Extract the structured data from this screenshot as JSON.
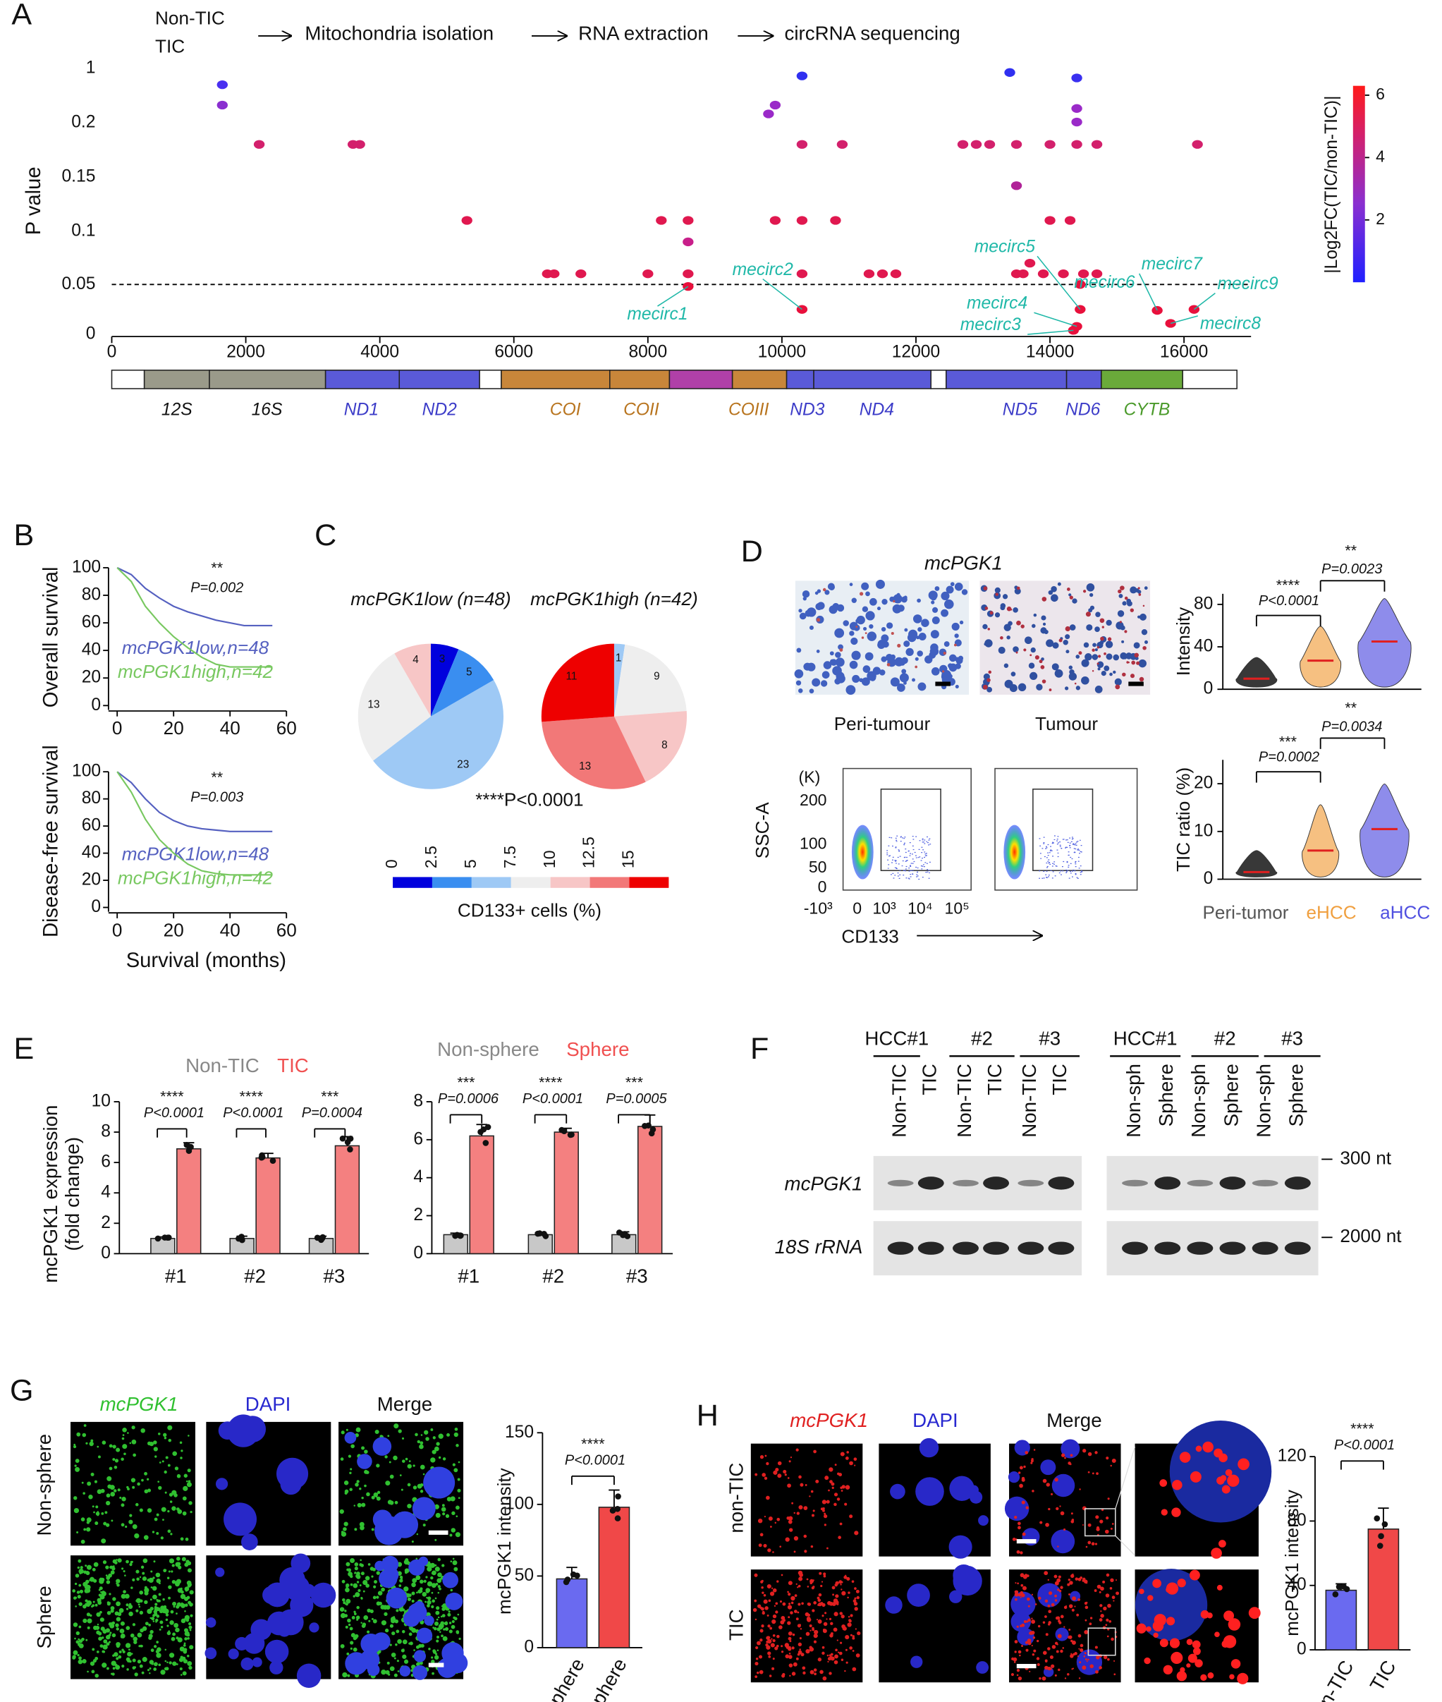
{
  "panels": [
    "A",
    "B",
    "C",
    "D",
    "E",
    "F",
    "G",
    "H"
  ],
  "A": {
    "flow": [
      "Non-TIC",
      "TIC",
      "Mitochondria isolation",
      "RNA extraction",
      "circRNA sequencing"
    ],
    "genes": [
      "12S",
      "16S",
      "ND1",
      "ND2",
      "COI",
      "COII",
      "COIII",
      "ND3",
      "ND4",
      "ND5",
      "ND6",
      "CYTB"
    ],
    "colorbar_title": "|Log2FC(TIC/non-TIC)|",
    "colorbar_lim": [
      0,
      6.3
    ],
    "colorbar_ticks": [
      2,
      4,
      6
    ]
  },
  "C": {
    "ticks": [
      0,
      2.5,
      5,
      7.5,
      10,
      12.5,
      15
    ],
    "colors": [
      "#0000dd",
      "#3a8ef0",
      "#9ec9f5",
      "#eeeeee",
      "#f7c6c6",
      "#f27878",
      "#ee0000"
    ],
    "label": "CD133+ cells (%)",
    "p": "****P<0.0001"
  },
  "D": {
    "title": "mcPGK1",
    "images": [
      "Peri-tumour",
      "Tumour"
    ],
    "flow_unit": "(K)",
    "flow_ylabel": "SSC-A",
    "flow_yticks": [
      "200",
      "100",
      "50",
      "0"
    ],
    "flow_xticks": [
      "-10³",
      "0",
      "10³",
      "10⁴",
      "10⁵"
    ],
    "flow_xlabel": "CD133"
  },
  "F": {
    "groups_left": [
      "HCC#1",
      "#2",
      "#3"
    ],
    "groups_right": [
      "HCC#1",
      "#2",
      "#3"
    ],
    "lanes_left": [
      "Non-TIC",
      "TIC",
      "Non-TIC",
      "TIC",
      "Non-TIC",
      "TIC"
    ],
    "lanes_right": [
      "Non-sph",
      "Sphere",
      "Non-sph",
      "Sphere",
      "Non-sph",
      "Sphere"
    ],
    "rows": [
      "mcPGK1",
      "18S rRNA"
    ],
    "markers": [
      "300 nt",
      "2000 nt"
    ]
  },
  "G": {
    "columns": [
      "mcPGK1",
      "DAPI",
      "Merge"
    ],
    "rows": [
      "Non-sphere",
      "Sphere"
    ]
  },
  "H": {
    "columns": [
      "mcPGK1",
      "DAPI",
      "Merge"
    ],
    "rows": [
      "non-TIC",
      "TIC"
    ]
  },
  "chart_data": [
    {
      "type": "scatter",
      "ylabel": "P value",
      "xlim": [
        0,
        17000
      ],
      "xticks": [
        0,
        2000,
        4000,
        6000,
        8000,
        10000,
        12000,
        14000,
        16000
      ],
      "ylim": [
        0,
        1
      ],
      "yticks": [
        0,
        0.05,
        0.1,
        0.15,
        0.2,
        1
      ],
      "hline": 0.05,
      "x": [
        1650,
        1650,
        2200,
        3600,
        3700,
        5300,
        6500,
        6600,
        7000,
        8000,
        8200,
        8600,
        8600,
        8600,
        8600,
        9800,
        9900,
        10300,
        9900,
        10300,
        10800,
        10300,
        10900,
        10300,
        10300,
        11300,
        11500,
        11700,
        12700,
        12900,
        13100,
        13500,
        13500,
        13400,
        13500,
        13600,
        13700,
        14400,
        14400,
        14400,
        14000,
        14400,
        14700,
        14000,
        14300,
        13900,
        14200,
        14500,
        14700,
        14450,
        14450,
        14400,
        14350,
        15600,
        15800,
        16150,
        16200
      ],
      "values": [
        0.76,
        0.46,
        0.18,
        0.18,
        0.18,
        0.11,
        0.06,
        0.06,
        0.06,
        0.06,
        0.11,
        0.11,
        0.09,
        0.06,
        0.048,
        0.33,
        0.46,
        0.89,
        0.11,
        0.11,
        0.11,
        0.18,
        0.18,
        0.06,
        0.025,
        0.06,
        0.06,
        0.06,
        0.18,
        0.18,
        0.18,
        0.18,
        0.142,
        0.94,
        0.06,
        0.06,
        0.07,
        0.86,
        0.41,
        0.21,
        0.18,
        0.18,
        0.18,
        0.11,
        0.11,
        0.06,
        0.06,
        0.06,
        0.06,
        0.05,
        0.025,
        0.008,
        0.004,
        0.024,
        0.011,
        0.025,
        0.18
      ],
      "colors": [
        "#4a2ff0",
        "#8a2fd0",
        "#d3206c",
        "#d3206c",
        "#d3206c",
        "#e0184f",
        "#e0184f",
        "#e0184f",
        "#e0184f",
        "#e0184f",
        "#e0184f",
        "#e0184f",
        "#c81f8a",
        "#e0184f",
        "#e8103c",
        "#9a2ac8",
        "#9a2ac8",
        "#3030f0",
        "#e0184f",
        "#e0184f",
        "#e0184f",
        "#d3206c",
        "#d3206c",
        "#e0184f",
        "#e8103c",
        "#e0184f",
        "#e0184f",
        "#e0184f",
        "#d3206c",
        "#d3206c",
        "#d3206c",
        "#d3206c",
        "#b02398",
        "#3030f0",
        "#e0184f",
        "#e0184f",
        "#e0184f",
        "#3a30f0",
        "#9a2ac8",
        "#9a2ac8",
        "#d3206c",
        "#d3206c",
        "#d3206c",
        "#e0184f",
        "#e0184f",
        "#e0184f",
        "#e0184f",
        "#e0184f",
        "#e0184f",
        "#e8103c",
        "#e8103c",
        "#e8103c",
        "#e8103c",
        "#e8103c",
        "#e8103c",
        "#e8103c",
        "#d3206c"
      ],
      "annotations": [
        "mecirc1",
        "mecirc2",
        "mecirc3",
        "mecirc4",
        "mecirc5",
        "mecirc6",
        "mecirc7",
        "mecirc8",
        "mecirc9"
      ]
    },
    {
      "type": "line",
      "ylabel": "Overall survival",
      "xlim": [
        0,
        60
      ],
      "xticks": [
        0,
        20,
        40,
        60
      ],
      "ylim": [
        0,
        100
      ],
      "yticks": [
        0,
        20,
        40,
        60,
        80,
        100
      ],
      "x": [
        0,
        5,
        10,
        15,
        20,
        25,
        30,
        35,
        40,
        45,
        55
      ],
      "series": [
        {
          "name": "mcPGK1low,n=48",
          "color": "#5560c0",
          "values": [
            100,
            95,
            85,
            78,
            72,
            68,
            65,
            62,
            60,
            58,
            58
          ]
        },
        {
          "name": "mcPGK1high,n=42",
          "color": "#78c860",
          "values": [
            100,
            90,
            72,
            60,
            50,
            42,
            35,
            30,
            28,
            28,
            28
          ]
        }
      ],
      "annotations": [
        "**",
        "P=0.002"
      ]
    },
    {
      "type": "line",
      "ylabel": "Disease-free survival",
      "xlabel": "Survival (months)",
      "xlim": [
        0,
        60
      ],
      "xticks": [
        0,
        20,
        40,
        60
      ],
      "ylim": [
        0,
        100
      ],
      "yticks": [
        0,
        20,
        40,
        60,
        80,
        100
      ],
      "x": [
        0,
        5,
        10,
        15,
        20,
        25,
        30,
        35,
        40,
        45,
        55
      ],
      "series": [
        {
          "name": "mcPGK1low,n=48",
          "color": "#5560c0",
          "values": [
            100,
            92,
            80,
            70,
            64,
            60,
            58,
            57,
            56,
            56,
            56
          ]
        },
        {
          "name": "mcPGK1high,n=42",
          "color": "#78c860",
          "values": [
            100,
            85,
            65,
            50,
            40,
            32,
            27,
            25,
            24,
            24,
            24
          ]
        }
      ],
      "annotations": [
        "**",
        "P=0.003"
      ]
    },
    {
      "type": "pie",
      "title": "mcPGK1low (n=48)",
      "values": [
        3,
        5,
        23,
        13,
        4
      ],
      "colors": [
        "#0000dd",
        "#3a8ef0",
        "#9ec9f5",
        "#eeeeee",
        "#f7c6c6"
      ]
    },
    {
      "type": "pie",
      "title": "mcPGK1high (n=42)",
      "values": [
        1,
        9,
        8,
        13,
        11
      ],
      "colors": [
        "#9ec9f5",
        "#eeeeee",
        "#f7c6c6",
        "#f27878",
        "#ee0000"
      ]
    },
    {
      "type": "violin",
      "ylabel": "Intensity",
      "ylim": [
        0,
        90
      ],
      "yticks": [
        0,
        40,
        80
      ],
      "values": [
        10,
        27,
        45
      ],
      "colors": [
        "#222222",
        "#f5b56b",
        "#7a78e8"
      ],
      "annotations": [
        "****",
        "P<0.0001",
        "**",
        "P=0.0023"
      ]
    },
    {
      "type": "violin",
      "ylabel": "TIC ratio (%)",
      "ylim": [
        0,
        25
      ],
      "yticks": [
        0,
        10,
        20
      ],
      "categories": [
        "Peri-tumor",
        "eHCC",
        "aHCC"
      ],
      "values": [
        1.5,
        6,
        10.5
      ],
      "colors": [
        "#222222",
        "#f5b56b",
        "#7a78e8"
      ],
      "category_colors": [
        "#555555",
        "#f0a040",
        "#5050e0"
      ],
      "annotations": [
        "***",
        "P=0.0002",
        "**",
        "P=0.0034"
      ]
    },
    {
      "type": "bar",
      "ylabel": [
        "mcPGK1 expression",
        "(fold change)"
      ],
      "ylim": [
        0,
        10
      ],
      "yticks": [
        0,
        2,
        4,
        6,
        8,
        10
      ],
      "categories": [
        "#1",
        "#2",
        "#3"
      ],
      "series": [
        {
          "name": "Non-TIC",
          "color": "#c8c8c8",
          "values": [
            1,
            1,
            1
          ],
          "errors": [
            0.1,
            0.15,
            0.15
          ]
        },
        {
          "name": "TIC",
          "color": "#f48080",
          "values": [
            6.9,
            6.3,
            7.1
          ],
          "errors": [
            0.4,
            0.3,
            0.6
          ]
        }
      ],
      "legend_colors": [
        "#888888",
        "#f05050"
      ],
      "annotations": [
        "****",
        "P<0.0001",
        "****",
        "P<0.0001",
        "***",
        "P=0.0004"
      ]
    },
    {
      "type": "bar",
      "ylim": [
        0,
        8
      ],
      "yticks": [
        0,
        2,
        4,
        6,
        8
      ],
      "categories": [
        "#1",
        "#2",
        "#3"
      ],
      "series": [
        {
          "name": "Non-sphere",
          "color": "#c8c8c8",
          "values": [
            1,
            1,
            1
          ],
          "errors": [
            0.08,
            0.1,
            0.15
          ]
        },
        {
          "name": "Sphere",
          "color": "#f48080",
          "values": [
            6.2,
            6.4,
            6.7
          ],
          "errors": [
            0.6,
            0.2,
            0.6
          ]
        }
      ],
      "legend_colors": [
        "#888888",
        "#f05050"
      ],
      "annotations": [
        "***",
        "P=0.0006",
        "****",
        "P<0.0001",
        "***",
        "P=0.0005"
      ]
    },
    {
      "type": "bar",
      "ylabel": "mcPGK1 intensity",
      "ylim": [
        0,
        150
      ],
      "yticks": [
        0,
        50,
        100,
        150
      ],
      "categories": [
        "Non-sphere",
        "Sphere"
      ],
      "values": [
        48,
        98
      ],
      "errors": [
        8,
        12
      ],
      "colors": [
        "#6a6af0",
        "#f04848"
      ],
      "annotations": [
        "****",
        "P<0.0001"
      ]
    },
    {
      "type": "bar",
      "ylabel": "mcPGK1 intensity",
      "ylim": [
        0,
        120
      ],
      "yticks": [
        0,
        40,
        80,
        120
      ],
      "categories": [
        "Non-TIC",
        "TIC"
      ],
      "values": [
        37,
        75
      ],
      "errors": [
        4,
        13
      ],
      "colors": [
        "#6a6af0",
        "#f04848"
      ],
      "annotations": [
        "****",
        "P<0.0001"
      ]
    }
  ]
}
